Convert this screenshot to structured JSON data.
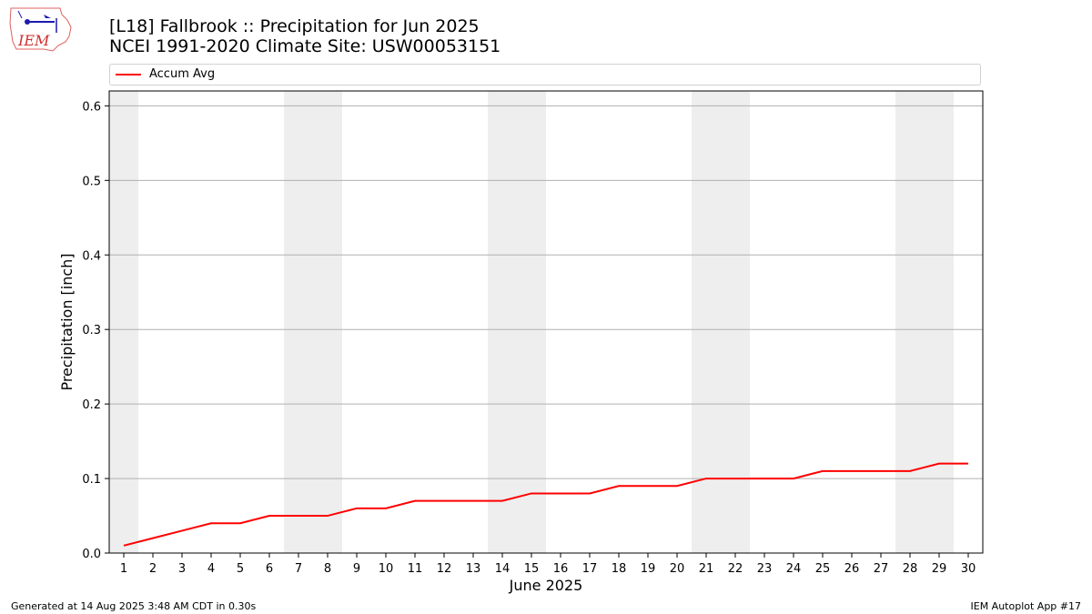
{
  "title_line1": "[L18] Fallbrook :: Precipitation for Jun 2025",
  "title_line2": "NCEI 1991-2020 Climate Site: USW00053151",
  "logo_text": "IEM",
  "footer_left": "Generated at 14 Aug 2025 3:48 AM CDT in 0.30s",
  "footer_right": "IEM Autoplot App #17",
  "colors": {
    "line": "#ff0000",
    "weekend": "#eeeeee",
    "grid": "#b0b0b0"
  },
  "chart_data": {
    "type": "line",
    "xlabel": "June 2025",
    "ylabel": "Precipitation [inch]",
    "xlim": [
      0.5,
      30.5
    ],
    "ylim": [
      0.0,
      0.62
    ],
    "yticks": [
      0.0,
      0.1,
      0.2,
      0.3,
      0.4,
      0.5,
      0.6
    ],
    "ytick_labels": [
      "0.0",
      "0.1",
      "0.2",
      "0.3",
      "0.4",
      "0.5",
      "0.6"
    ],
    "xticks": [
      1,
      2,
      3,
      4,
      5,
      6,
      7,
      8,
      9,
      10,
      11,
      12,
      13,
      14,
      15,
      16,
      17,
      18,
      19,
      20,
      21,
      22,
      23,
      24,
      25,
      26,
      27,
      28,
      29,
      30
    ],
    "grid": "horizontal",
    "legend_placement": "top",
    "shaded_days": [
      1,
      7,
      8,
      14,
      15,
      21,
      22,
      28,
      29
    ],
    "series": [
      {
        "name": "Accum Avg",
        "x": [
          1,
          2,
          3,
          4,
          5,
          6,
          7,
          8,
          9,
          10,
          11,
          12,
          13,
          14,
          15,
          16,
          17,
          18,
          19,
          20,
          21,
          22,
          23,
          24,
          25,
          26,
          27,
          28,
          29,
          30
        ],
        "values": [
          0.01,
          0.02,
          0.03,
          0.04,
          0.04,
          0.05,
          0.05,
          0.05,
          0.06,
          0.06,
          0.07,
          0.07,
          0.07,
          0.07,
          0.08,
          0.08,
          0.08,
          0.09,
          0.09,
          0.09,
          0.1,
          0.1,
          0.1,
          0.1,
          0.11,
          0.11,
          0.11,
          0.11,
          0.12,
          0.12
        ]
      }
    ]
  }
}
